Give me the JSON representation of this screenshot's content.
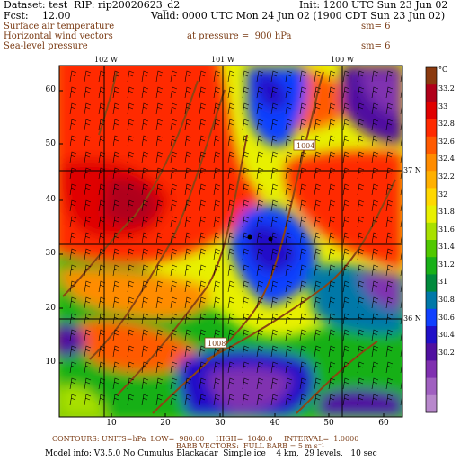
{
  "header": {
    "dataset_label": "Dataset: test  RIP: rip20020623_d2",
    "init_label": "Init: 1200 UTC Sun 23 Jun 02",
    "fcst_label": "Fcst:",
    "fcst_value": "12.00",
    "valid_label": "Valid: 0000 UTC Mon 24 Jun 02 (1900 CDT Sun 23 Jun 02)",
    "field1": "Surface air temperature",
    "field2": "Horizontal wind vectors",
    "field3": "Sea-level pressure",
    "pressure_label": "at pressure =  900 hPa",
    "sm1": "sm= 6",
    "sm2": "sm= 6"
  },
  "map": {
    "lon_labels": [
      "102 W",
      "101 W",
      "100 W"
    ],
    "lat_labels": [
      "37 N",
      "36 N"
    ],
    "y_ticks": [
      "60",
      "50",
      "40",
      "30",
      "20",
      "10"
    ],
    "x_ticks": [
      "10",
      "20",
      "30",
      "40",
      "50",
      "60"
    ],
    "isobar_labels": [
      "1004",
      "1008"
    ]
  },
  "legend": {
    "unit": "°C",
    "labels": [
      "33.2",
      "33",
      "32.8",
      "32.6",
      "32.4",
      "32.2",
      "32",
      "31.8",
      "31.6",
      "31.4",
      "31.2",
      "31",
      "30.8",
      "30.6",
      "30.4",
      "30.2"
    ],
    "colors": [
      "#8b3a0f",
      "#b0001a",
      "#e00000",
      "#ff2a00",
      "#ff5a00",
      "#ff8c00",
      "#ffb000",
      "#ffd800",
      "#e8f000",
      "#a8e000",
      "#50c800",
      "#18b018",
      "#008a3c",
      "#0078a8",
      "#1040ff",
      "#2010c8",
      "#5010a0",
      "#8030b0",
      "#a060c0",
      "#b888cc"
    ]
  },
  "footer": {
    "contours_line": "CONTOURS: UNITS=hPa  LOW=  980.00     HIGH=  1040.0     INTERVAL=  1.0000",
    "barb_line": "BARB VECTORS:  FULL BARB = 5 m s⁻¹",
    "model_info": "Model info: V3.5.0 No Cumulus Blackadar  Simple ice    4 km,  29 levels,   10 sec"
  }
}
